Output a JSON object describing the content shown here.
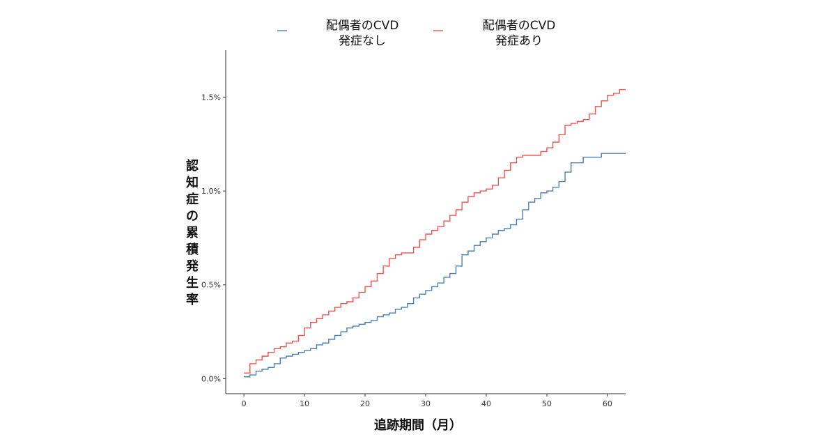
{
  "chart_data": {
    "type": "line",
    "step": true,
    "legend": {
      "placement": "top",
      "entries": [
        {
          "label": "配偶者のCVD\n発症なし",
          "color": "#4a7fb5"
        },
        {
          "label": "配偶者のCVD\n発症あり",
          "color": "#ef5350"
        }
      ]
    },
    "ylabel": "認知症の累積発生率",
    "xlabel": "追跡期間（月）",
    "xlim": [
      -3,
      63
    ],
    "ylim": [
      -0.0008,
      0.0175
    ],
    "xticks": [
      0,
      10,
      20,
      30,
      40,
      50,
      60
    ],
    "xtick_labels": [
      "0",
      "10",
      "20",
      "30",
      "40",
      "50",
      "60"
    ],
    "yticks": [
      0,
      0.005,
      0.01,
      0.015
    ],
    "ytick_labels": [
      "0.0%",
      "0.5%",
      "1.0%",
      "1.5%"
    ],
    "grid": false,
    "series": [
      {
        "name": "配偶者のCVD発症なし",
        "color": "#4a7fb5",
        "x": [
          0,
          1,
          2,
          3,
          4,
          5,
          6,
          7,
          8,
          9,
          10,
          11,
          12,
          13,
          14,
          15,
          16,
          17,
          18,
          19,
          20,
          21,
          22,
          23,
          24,
          25,
          26,
          27,
          28,
          29,
          30,
          31,
          32,
          33,
          34,
          35,
          36,
          37,
          38,
          39,
          40,
          41,
          42,
          43,
          44,
          45,
          46,
          47,
          48,
          49,
          50,
          51,
          52,
          53,
          54,
          55,
          56,
          57,
          58,
          59,
          60,
          61,
          62,
          63
        ],
        "y": [
          0.0001,
          0.0002,
          0.0004,
          0.0005,
          0.0006,
          0.0008,
          0.0011,
          0.0012,
          0.0013,
          0.0014,
          0.0015,
          0.0016,
          0.0018,
          0.0019,
          0.0021,
          0.0023,
          0.0025,
          0.0027,
          0.0028,
          0.0029,
          0.003,
          0.0031,
          0.0033,
          0.0034,
          0.0035,
          0.0037,
          0.0038,
          0.004,
          0.0043,
          0.0045,
          0.0047,
          0.0049,
          0.0051,
          0.0054,
          0.0056,
          0.006,
          0.0066,
          0.0068,
          0.0071,
          0.0073,
          0.0075,
          0.0077,
          0.0079,
          0.008,
          0.0082,
          0.0085,
          0.009,
          0.0094,
          0.0096,
          0.0099,
          0.01,
          0.0102,
          0.0105,
          0.011,
          0.0115,
          0.0115,
          0.0118,
          0.0118,
          0.0118,
          0.012,
          0.012,
          0.012,
          0.012,
          0.012
        ]
      },
      {
        "name": "配偶者のCVD発症あり",
        "color": "#ef5350",
        "x": [
          0,
          1,
          2,
          3,
          4,
          5,
          6,
          7,
          8,
          9,
          10,
          11,
          12,
          13,
          14,
          15,
          16,
          17,
          18,
          19,
          20,
          21,
          22,
          23,
          24,
          25,
          26,
          27,
          28,
          29,
          30,
          31,
          32,
          33,
          34,
          35,
          36,
          37,
          38,
          39,
          40,
          41,
          42,
          43,
          44,
          45,
          46,
          47,
          48,
          49,
          50,
          51,
          52,
          53,
          54,
          55,
          56,
          57,
          58,
          59,
          60,
          61,
          62,
          63
        ],
        "y": [
          0.0003,
          0.0008,
          0.001,
          0.0012,
          0.0014,
          0.0016,
          0.0017,
          0.0019,
          0.002,
          0.0023,
          0.0027,
          0.003,
          0.0032,
          0.0034,
          0.0036,
          0.0038,
          0.004,
          0.0041,
          0.0043,
          0.0046,
          0.0049,
          0.0052,
          0.0056,
          0.006,
          0.0064,
          0.0066,
          0.0067,
          0.0067,
          0.007,
          0.0074,
          0.0077,
          0.0079,
          0.0081,
          0.0084,
          0.0087,
          0.009,
          0.0094,
          0.0097,
          0.0099,
          0.01,
          0.0101,
          0.0103,
          0.0107,
          0.0111,
          0.0115,
          0.0118,
          0.0119,
          0.0119,
          0.0119,
          0.0121,
          0.0123,
          0.0126,
          0.013,
          0.0135,
          0.0136,
          0.0137,
          0.0138,
          0.0141,
          0.0145,
          0.0148,
          0.0151,
          0.0152,
          0.0154,
          0.0154
        ]
      }
    ]
  }
}
